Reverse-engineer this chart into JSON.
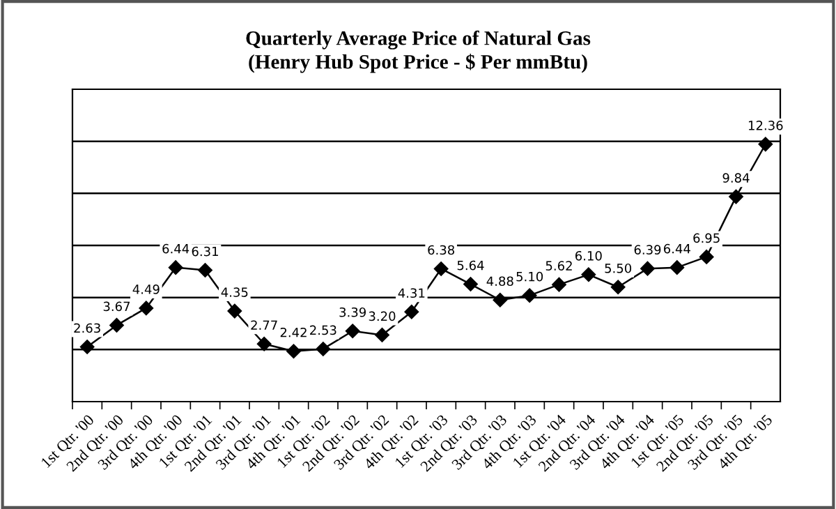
{
  "chart_data": {
    "type": "line",
    "title": "Quarterly Average Price of Natural Gas\n(Henry Hub Spot Price - $ Per mmBtu)",
    "categories": [
      "1st Qtr. '00",
      "2nd Qtr. '00",
      "3rd Qtr. '00",
      "4th Qtr. '00",
      "1st Qtr. '01",
      "2nd Qtr. '01",
      "3rd Qtr. '01",
      "4th Qtr. '01",
      "1st Qtr. '02",
      "2nd Qtr. '02",
      "3rd Qtr. '02",
      "4th Qtr. '02",
      "1st Qtr. '03",
      "2nd Qtr. '03",
      "3rd Qtr. '03",
      "4th Qtr. '03",
      "1st Qtr. '04",
      "2nd Qtr. '04",
      "3rd Qtr. '04",
      "4th Qtr. '04",
      "1st Qtr. '05",
      "2nd Qtr. '05",
      "3rd Qtr. '05",
      "4th Qtr. '05"
    ],
    "series": [
      {
        "color": "#000000",
        "values": [
          2.63,
          3.67,
          4.49,
          6.44,
          6.31,
          4.35,
          2.77,
          2.42,
          2.53,
          3.39,
          3.2,
          4.31,
          6.38,
          5.64,
          4.88,
          5.1,
          5.62,
          6.1,
          5.5,
          6.39,
          6.44,
          6.95,
          9.84,
          12.36
        ],
        "value_labels": [
          "2.63",
          "3.67",
          "4.49",
          "6.44",
          "6.31",
          "4.35",
          "2.77",
          "2.42",
          "2.53",
          "3.39",
          "3.20",
          "4.31",
          "6.38",
          "5.64",
          "4.88",
          "5.10",
          "5.62",
          "6.10",
          "5.50",
          "6.39",
          "6.44",
          "6.95",
          "9.84",
          "12.36"
        ]
      }
    ],
    "ylim": [
      0,
      15
    ],
    "yticks": [
      {
        "value": 2.5,
        "label": null
      },
      {
        "value": 5,
        "label": null
      },
      {
        "value": 7.5,
        "label": null
      },
      {
        "value": 10,
        "label": null
      },
      {
        "value": 12.5,
        "label": null
      }
    ],
    "grid": "y",
    "marker": "diamond",
    "line_style": "solid",
    "legend": false,
    "tick_labels": "x"
  }
}
